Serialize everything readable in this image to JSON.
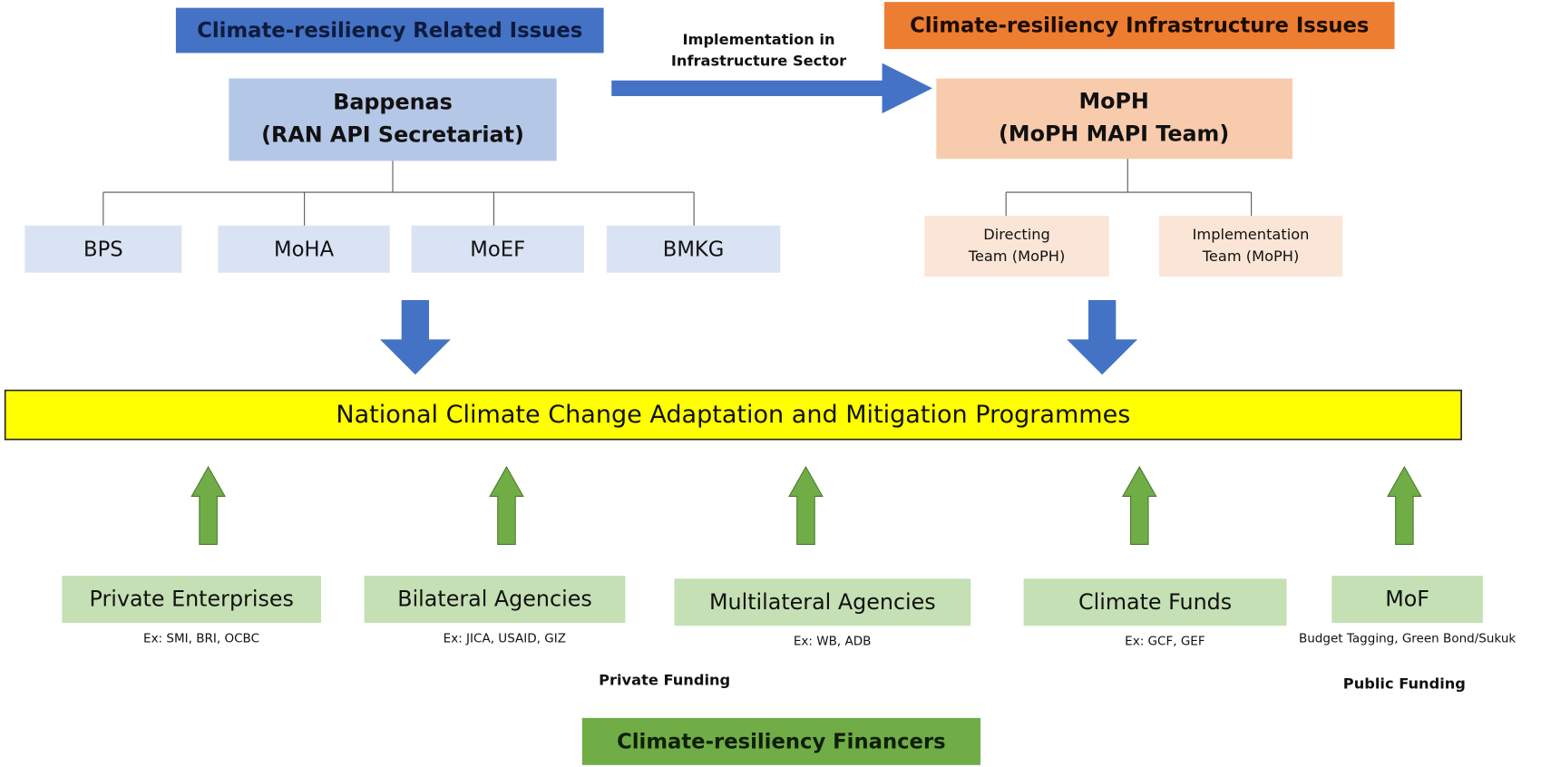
{
  "left": {
    "heading": "Climate-resiliency Related Issues",
    "title": [
      "Bappenas",
      "(RAN API Secretariat)"
    ],
    "children": [
      "BPS",
      "MoHA",
      "MoEF",
      "BMKG"
    ]
  },
  "right": {
    "heading": "Climate-resiliency Infrastructure Issues",
    "title": [
      "MoPH",
      "(MoPH MAPI Team)"
    ],
    "children": [
      [
        "Directing",
        "Team (MoPH)"
      ],
      [
        "Implementation",
        "Team (MoPH)"
      ]
    ]
  },
  "arrow_label": [
    "Implementation in",
    "Infrastructure Sector"
  ],
  "programme": "National Climate Change Adaptation and Mitigation Programmes",
  "financers": [
    {
      "name": "Private Enterprises",
      "example": "Ex: SMI, BRI, OCBC"
    },
    {
      "name": "Bilateral Agencies",
      "example": "Ex: JICA, USAID, GIZ"
    },
    {
      "name": "Multilateral Agencies",
      "example": "Ex: WB, ADB"
    },
    {
      "name": "Climate Funds",
      "example": "Ex: GCF, GEF"
    },
    {
      "name": "MoF",
      "example": "Budget Tagging, Green Bond/Sukuk"
    }
  ],
  "private_funding": "Private Funding",
  "public_funding": "Public Funding",
  "footer": "Climate-resiliency Financers"
}
